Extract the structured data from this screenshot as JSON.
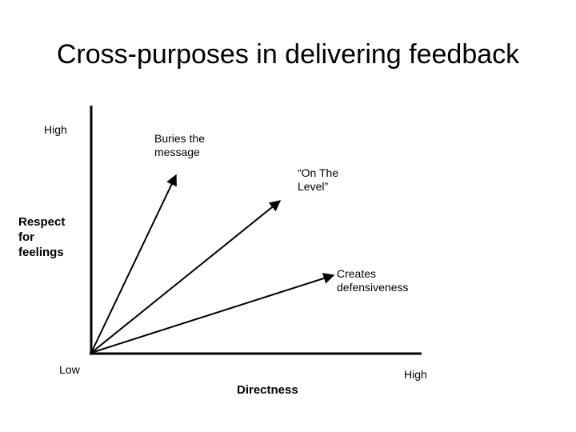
{
  "title": "Cross-purposes in delivering feedback",
  "y_axis": {
    "label": "Respect for feelings",
    "high_label": "High"
  },
  "x_axis": {
    "label": "Directness",
    "low_label": "Low",
    "high_label": "High"
  },
  "arrows": [
    {
      "label": "Buries the message"
    },
    {
      "label": "“On The Level”"
    },
    {
      "label": "Creates defensiveness"
    }
  ],
  "colors": {
    "background": "#ffffff",
    "ink": "#000000"
  }
}
